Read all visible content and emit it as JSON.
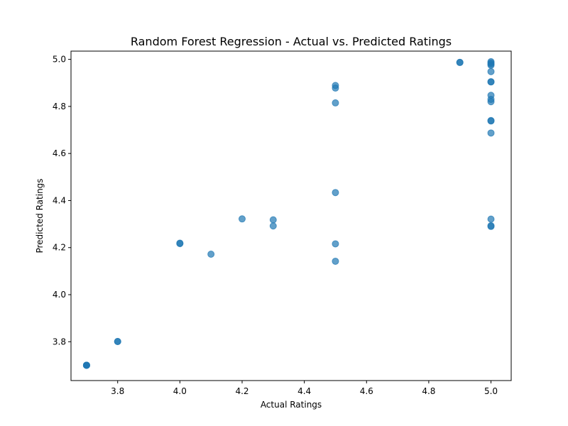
{
  "chart_data": {
    "type": "scatter",
    "title": "Random Forest Regression - Actual vs. Predicted Ratings",
    "xlabel": "Actual Ratings",
    "ylabel": "Predicted Ratings",
    "xlim": [
      3.65,
      5.065
    ],
    "ylim": [
      3.635,
      5.035
    ],
    "xticks": [
      "3.8",
      "4.0",
      "4.2",
      "4.4",
      "4.6",
      "4.8",
      "5.0"
    ],
    "yticks": [
      "3.8",
      "4.0",
      "4.2",
      "4.4",
      "4.6",
      "4.8",
      "5.0"
    ],
    "grid": false,
    "marker_color": "#1f77b4",
    "marker_alpha": 0.7,
    "series": [
      {
        "x": [
          3.7,
          3.7,
          3.7,
          3.7,
          3.8,
          3.8,
          4.0,
          4.0,
          4.1,
          4.2,
          4.3,
          4.3,
          4.5,
          4.5,
          4.5,
          4.5,
          4.5,
          4.5,
          4.9,
          4.9,
          5.0,
          5.0,
          5.0,
          5.0,
          5.0,
          5.0,
          5.0,
          5.0,
          5.0,
          5.0,
          5.0,
          5.0,
          5.0,
          5.0,
          5.0,
          5.0
        ],
        "y": [
          3.7,
          3.7,
          3.7,
          3.7,
          3.801,
          3.801,
          4.217,
          4.219,
          4.172,
          4.322,
          4.318,
          4.292,
          4.889,
          4.878,
          4.815,
          4.434,
          4.216,
          4.142,
          4.987,
          4.987,
          4.99,
          4.985,
          4.98,
          4.975,
          4.948,
          4.905,
          4.904,
          4.847,
          4.83,
          4.82,
          4.74,
          4.738,
          4.687,
          4.321,
          4.293,
          4.29
        ]
      }
    ]
  }
}
